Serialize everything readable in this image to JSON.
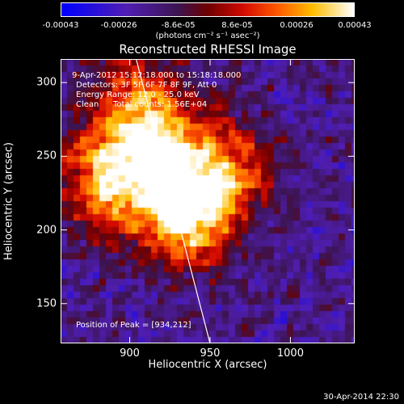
{
  "colorbar": {
    "ticks": [
      "-0.00043",
      "-0.00026",
      "-8.6e-05",
      "8.6e-05",
      "0.00026",
      "0.00043"
    ],
    "tick_values": [
      -0.00043,
      -0.00026,
      -8.6e-05,
      8.6e-05,
      0.00026,
      0.00043
    ],
    "range": [
      -0.00043,
      0.00043
    ],
    "unit": "(photons cm⁻² s⁻¹ asec⁻²)"
  },
  "chart_data": {
    "type": "heatmap",
    "title": "Reconstructed RHESSI Image",
    "xlabel": "Heliocentric X (arcsec)",
    "ylabel": "Heliocentric Y (arcsec)",
    "xlim": [
      857,
      1040
    ],
    "ylim": [
      123,
      316
    ],
    "xticks": [
      900,
      950,
      1000
    ],
    "yticks": [
      150,
      200,
      250,
      300
    ],
    "peak": [
      934,
      212
    ],
    "limb_line": [
      [
        904,
        316
      ],
      [
        950,
        123
      ]
    ],
    "sources": [
      {
        "x": 934,
        "y": 212,
        "intensity": 1.0
      },
      {
        "x": 885,
        "y": 232,
        "intensity": 0.8
      },
      {
        "x": 915,
        "y": 255,
        "intensity": 0.75
      },
      {
        "x": 960,
        "y": 240,
        "intensity": 0.65
      },
      {
        "x": 905,
        "y": 290,
        "intensity": 0.5
      }
    ]
  },
  "info": {
    "time": "9-Apr-2012 15:12:18.000 to 15:18:18.000",
    "detectors": "Detectors: 3F 5F 6F 7F 8F 9F, Att 0",
    "energy": "Energy Range: 12.0 - 25.0 keV",
    "method": "Clean",
    "counts": "Total counts: 1.56E+04",
    "peak": "Position of Peak = [934,212]"
  },
  "timestamp": "30-Apr-2014 22:30"
}
